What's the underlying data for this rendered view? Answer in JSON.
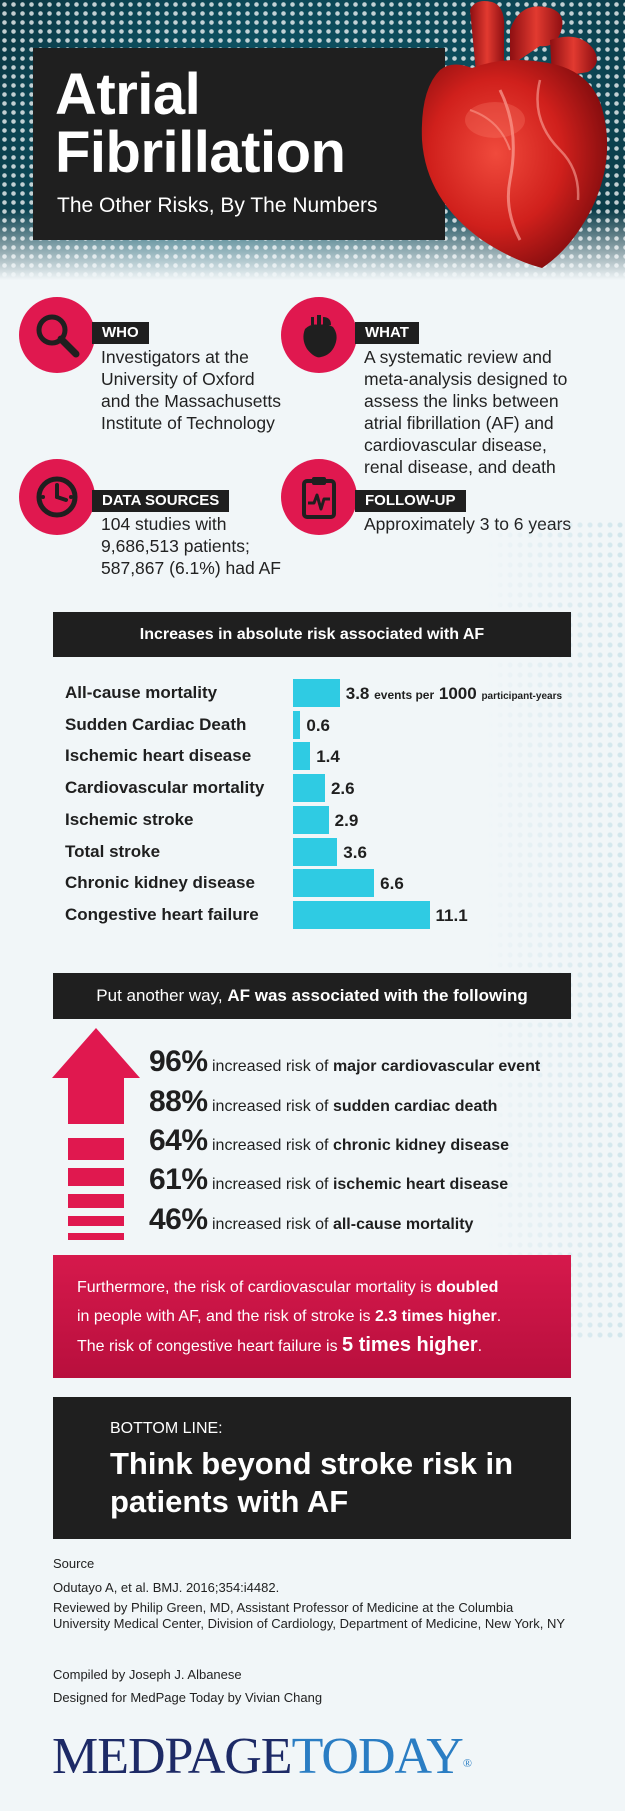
{
  "header": {
    "title_line1": "Atrial",
    "title_line2": "Fibrillation",
    "subtitle": "The Other Risks, By The Numbers"
  },
  "info": {
    "who": {
      "tag": "WHO",
      "icon": "magnifier-icon",
      "lines": [
        "Investigators at the",
        "University of Oxford",
        "and the Massachusetts",
        "Institute of Technology"
      ]
    },
    "what": {
      "tag": "WHAT",
      "icon": "heart-icon",
      "lines": [
        "A systematic review and",
        "meta-analysis designed to",
        "assess the links between",
        "atrial fibrillation (AF) and",
        "cardiovascular disease,",
        "renal disease, and death"
      ]
    },
    "data_sources": {
      "tag": "DATA SOURCES",
      "icon": "clock-icon",
      "lines": [
        "104 studies with",
        "9,686,513 patients;",
        "587,867 (6.1%) had AF"
      ]
    },
    "follow_up": {
      "tag": "FOLLOW-UP",
      "icon": "clipboard-icon",
      "lines": [
        "Approximately 3 to 6 years"
      ]
    }
  },
  "chart_data": {
    "type": "bar",
    "title": "Increases in absolute risk associated with AF",
    "orientation": "horizontal",
    "unit_a": "events per",
    "unit_b": "1000",
    "unit_c": "participant-years",
    "categories": [
      "All-cause mortality",
      "Sudden Cardiac Death",
      "Ischemic heart disease",
      "Cardiovascular mortality",
      "Ischemic stroke",
      "Total stroke",
      "Chronic kidney disease",
      "Congestive heart failure"
    ],
    "values": [
      3.8,
      0.6,
      1.4,
      2.6,
      2.9,
      3.6,
      6.6,
      11.1
    ],
    "value_labels": [
      "3.8",
      "0.6",
      "1.4",
      "2.6",
      "2.9",
      "3.6",
      "6.6",
      "11.1"
    ],
    "bar_color": "#2fcbe3"
  },
  "another_way": {
    "prefix": "Put another way,",
    "bold": "AF was associated with the following",
    "rows": [
      {
        "pct": "96%",
        "mid": "increased risk of",
        "outcome": "major cardiovascular event"
      },
      {
        "pct": "88%",
        "mid": "increased risk of",
        "outcome": "sudden cardiac death"
      },
      {
        "pct": "64%",
        "mid": "increased risk of",
        "outcome": "chronic kidney disease"
      },
      {
        "pct": "61%",
        "mid": "increased risk of",
        "outcome": "ischemic heart disease"
      },
      {
        "pct": "46%",
        "mid": "increased risk of",
        "outcome": "all-cause mortality"
      }
    ]
  },
  "furthermore": {
    "t1": "Furthermore, the risk of cardiovascular mortality is",
    "b1": "doubled",
    "t2": "in people with AF, and the risk of stroke is",
    "b2": "2.3 times higher",
    "t3": ".",
    "t4": "The risk of congestive heart failure is",
    "b3": "5 times higher",
    "t5": "."
  },
  "bottom_line": {
    "label": "BOTTOM LINE:",
    "text": "Think beyond stroke risk in patients with AF"
  },
  "footer": {
    "source_label": "Source",
    "citation": "Odutayo A, et al. BMJ. 2016;354:i4482.",
    "reviewed": "Reviewed by Philip Green, MD, Assistant Professor of Medicine at the Columbia University Medical Center, Division of Cardiology, Department of Medicine, New York, NY",
    "compiled": "Compiled by Joseph J. Albanese",
    "designed": "Designed for MedPage Today by Vivian Chang",
    "logo_part1": "MEDPAGE",
    "logo_part2": "TODAY",
    "logo_reg": "®"
  },
  "colors": {
    "accent_red": "#e0184f",
    "bar_cyan": "#2fcbe3",
    "dark": "#1f1f1f",
    "logo_navy": "#1d2a66",
    "logo_blue": "#2a7dc3"
  }
}
